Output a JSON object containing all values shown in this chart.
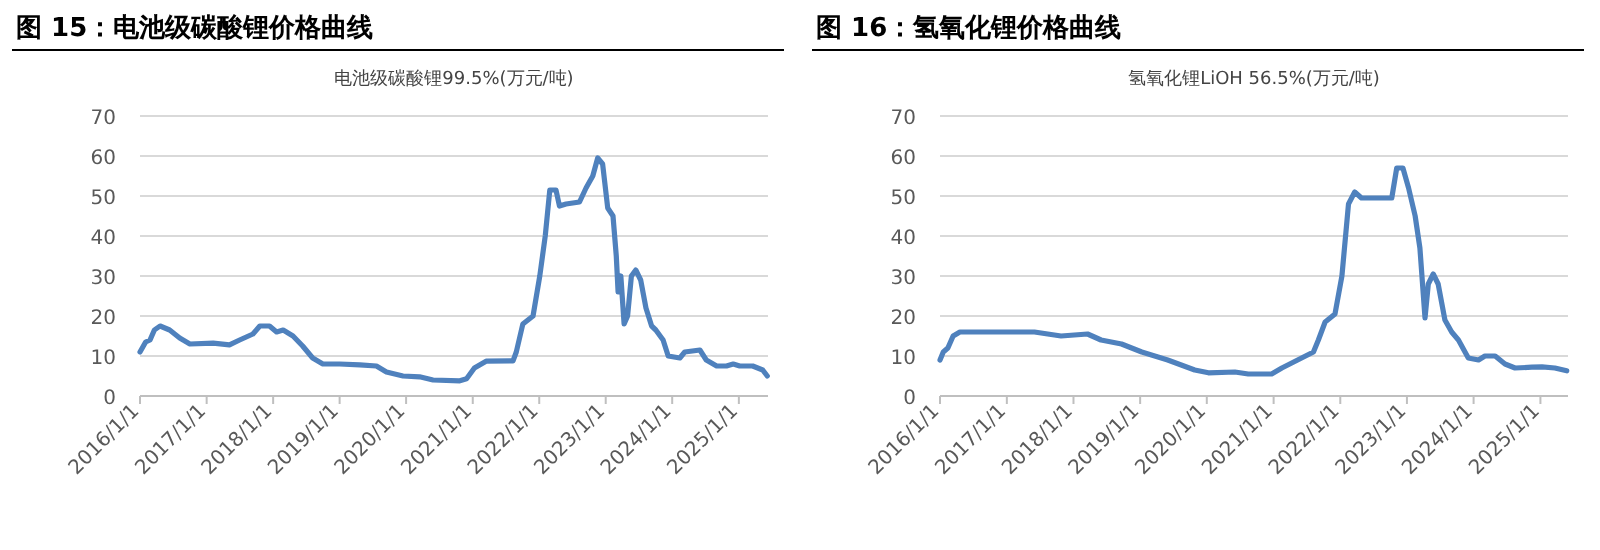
{
  "chart_data": [
    {
      "type": "line",
      "title": "图 15：电池级碳酸锂价格曲线",
      "subtitle": "电池级碳酸锂99.5%(万元/吨)",
      "grid": "y",
      "marker": "none",
      "line_style": "solid",
      "xlim": [
        "2016-01-01",
        "2025-06-10"
      ],
      "ylim": [
        0,
        70
      ],
      "yticks": [
        0,
        10,
        20,
        30,
        40,
        50,
        60,
        70
      ],
      "xticks": [
        {
          "value": "2016-01-01",
          "label": "2016/1/1"
        },
        {
          "value": "2017-01-01",
          "label": "2017/1/1"
        },
        {
          "value": "2018-01-01",
          "label": "2018/1/1"
        },
        {
          "value": "2019-01-01",
          "label": "2019/1/1"
        },
        {
          "value": "2020-01-01",
          "label": "2020/1/1"
        },
        {
          "value": "2021-01-01",
          "label": "2021/1/1"
        },
        {
          "value": "2022-01-01",
          "label": "2022/1/1"
        },
        {
          "value": "2023-01-01",
          "label": "2023/1/1"
        },
        {
          "value": "2024-01-01",
          "label": "2024/1/1"
        },
        {
          "value": "2025-01-01",
          "label": "2025/1/1"
        }
      ],
      "series": [
        {
          "color": "#4f81bd",
          "x": [
            "2016-01-01",
            "2016-02-01",
            "2016-02-25",
            "2016-03-20",
            "2016-04-20",
            "2016-06-12",
            "2016-08-06",
            "2016-10-01",
            "2017-02-06",
            "2017-05-06",
            "2017-07-01",
            "2017-09-12",
            "2017-10-20",
            "2017-12-12",
            "2018-01-20",
            "2018-02-25",
            "2018-04-20",
            "2018-06-12",
            "2018-08-06",
            "2018-10-01",
            "2019-01-01",
            "2019-04-22",
            "2019-07-22",
            "2019-09-15",
            "2019-12-15",
            "2020-03-15",
            "2020-05-28",
            "2020-10-22",
            "2020-11-28",
            "2021-01-10",
            "2021-03-15",
            "2021-08-10",
            "2021-08-28",
            "2021-10-03",
            "2021-11-28",
            "2022-01-04",
            "2022-02-03",
            "2022-02-28",
            "2022-04-03",
            "2022-04-22",
            "2022-05-28",
            "2022-08-10",
            "2022-09-15",
            "2022-10-22",
            "2022-11-18",
            "2022-12-15",
            "2023-01-12",
            "2023-02-10",
            "2023-02-28",
            "2023-03-10",
            "2023-03-25",
            "2023-04-12",
            "2023-05-01",
            "2023-05-22",
            "2023-06-15",
            "2023-07-12",
            "2023-08-10",
            "2023-09-10",
            "2023-10-03",
            "2023-11-12",
            "2023-12-10",
            "2024-02-12",
            "2024-03-10",
            "2024-06-01",
            "2024-07-06",
            "2024-09-01",
            "2024-10-25",
            "2024-12-01",
            "2025-01-06",
            "2025-03-18",
            "2025-05-12",
            "2025-06-06"
          ],
          "values": [
            11,
            13.5,
            14,
            16.5,
            17.5,
            16.5,
            14.5,
            13,
            13.2,
            12.8,
            14,
            15.5,
            17.5,
            17.5,
            16,
            16.5,
            15,
            12.5,
            9.5,
            8,
            8,
            7.8,
            7.5,
            6,
            5,
            4.8,
            4,
            3.8,
            4.3,
            7,
            8.7,
            8.8,
            11,
            18,
            20,
            30,
            40,
            51.5,
            51.5,
            47.5,
            48,
            48.5,
            52,
            55,
            59.5,
            58,
            47,
            45,
            35,
            26,
            30,
            18,
            20,
            30,
            31.5,
            29,
            22,
            17.5,
            16.5,
            14,
            10,
            9.5,
            11,
            11.5,
            9,
            7.5,
            7.5,
            8,
            7.5,
            7.5,
            6.5,
            5
          ]
        }
      ]
    },
    {
      "type": "line",
      "title": "图 16：氢氧化锂价格曲线",
      "subtitle": "氢氧化锂LiOH 56.5%(万元/吨)",
      "grid": "y",
      "marker": "none",
      "line_style": "solid",
      "xlim": [
        "2016-01-01",
        "2025-06-01"
      ],
      "ylim": [
        0,
        70
      ],
      "yticks": [
        0,
        10,
        20,
        30,
        40,
        50,
        60,
        70
      ],
      "xticks": [
        {
          "value": "2016-01-01",
          "label": "2016/1/1"
        },
        {
          "value": "2017-01-01",
          "label": "2017/1/1"
        },
        {
          "value": "2018-01-01",
          "label": "2018/1/1"
        },
        {
          "value": "2019-01-01",
          "label": "2019/1/1"
        },
        {
          "value": "2020-01-01",
          "label": "2020/1/1"
        },
        {
          "value": "2021-01-01",
          "label": "2021/1/1"
        },
        {
          "value": "2022-01-01",
          "label": "2022/1/1"
        },
        {
          "value": "2023-01-01",
          "label": "2023/1/1"
        },
        {
          "value": "2024-01-01",
          "label": "2024/1/1"
        },
        {
          "value": "2025-01-01",
          "label": "2025/1/1"
        }
      ],
      "series": [
        {
          "color": "#4f81bd",
          "x": [
            "2016-01-01",
            "2016-01-19",
            "2016-02-13",
            "2016-03-13",
            "2016-04-19",
            "2017-06-01",
            "2017-08-13",
            "2017-10-25",
            "2018-03-19",
            "2018-06-01",
            "2018-09-21",
            "2019-01-10",
            "2019-06-01",
            "2019-10-27",
            "2020-01-10",
            "2020-06-03",
            "2020-08-15",
            "2020-12-21",
            "2021-02-15",
            "2021-06-03",
            "2021-08-07",
            "2021-09-03",
            "2021-10-10",
            "2021-12-03",
            "2022-01-10",
            "2022-02-15",
            "2022-03-21",
            "2022-04-27",
            "2022-10-10",
            "2022-11-06",
            "2022-12-10",
            "2023-01-10",
            "2023-02-15",
            "2023-03-13",
            "2023-04-10",
            "2023-04-28",
            "2023-05-25",
            "2023-06-21",
            "2023-07-28",
            "2023-09-03",
            "2023-10-10",
            "2023-12-03",
            "2024-01-28",
            "2024-03-03",
            "2024-04-28",
            "2024-06-21",
            "2024-08-15",
            "2024-11-15",
            "2025-01-10",
            "2025-03-21",
            "2025-05-25"
          ],
          "values": [
            9,
            11,
            12,
            15,
            16,
            16,
            15.5,
            15,
            15.5,
            14,
            13,
            11,
            9,
            6.5,
            5.8,
            6,
            5.5,
            5.5,
            7,
            9.5,
            11,
            14,
            18.5,
            20.5,
            30,
            48,
            51,
            49.5,
            49.5,
            57,
            57,
            52,
            45,
            37,
            19.5,
            28,
            30.5,
            28,
            19,
            16,
            14,
            9.5,
            9,
            10,
            10,
            8,
            7,
            7.2,
            7.3,
            7,
            6.3
          ]
        }
      ]
    }
  ]
}
